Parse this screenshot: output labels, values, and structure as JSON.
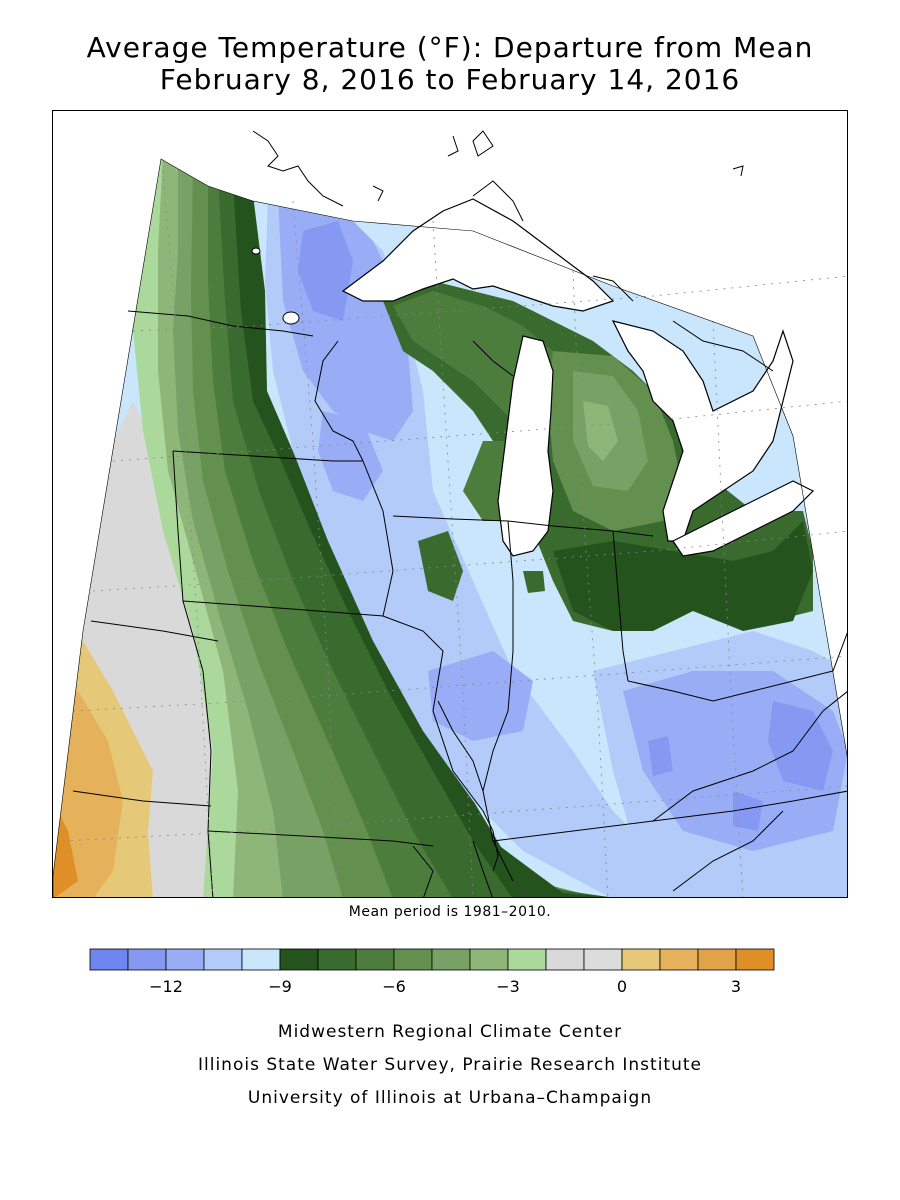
{
  "title": {
    "line1": "Average Temperature (°F): Departure from Mean",
    "line2": "February 8, 2016 to February 14, 2016"
  },
  "map": {
    "mean_note": "Mean period is 1981–2010."
  },
  "legend": {
    "colors": [
      "#6f86f0",
      "#8599f3",
      "#98adf5",
      "#b3cbf8",
      "#c9e6fc",
      "#25531e",
      "#396a2e",
      "#4c7d3c",
      "#638f4f",
      "#78a165",
      "#8fb679",
      "#abd99c",
      "#d9d9d9",
      "#dcdcdc",
      "#e6c978",
      "#e5b15b",
      "#e3a248",
      "#e08f26"
    ],
    "tick_labels": [
      "−12",
      "−9",
      "−6",
      "−3",
      "0",
      "3"
    ]
  },
  "credits": [
    "Midwestern Regional Climate Center",
    "Illinois State Water Survey, Prairie Research Institute",
    "University of Illinois at Urbana–Champaign"
  ]
}
